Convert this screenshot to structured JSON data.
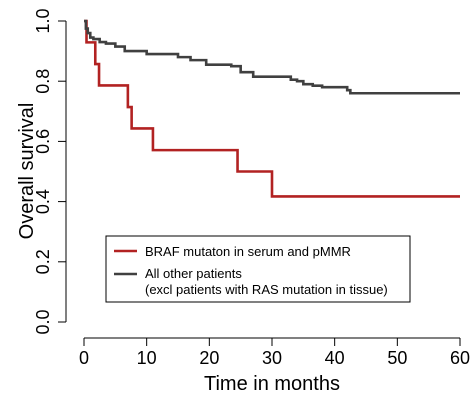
{
  "chart_data": {
    "type": "line",
    "subtype": "kaplan-meier step",
    "title": "",
    "xlabel": "Time in months",
    "ylabel": "Overall survival",
    "xlim": [
      0,
      60
    ],
    "ylim": [
      0,
      1
    ],
    "xticks": [
      "0",
      "10",
      "20",
      "30",
      "40",
      "50",
      "60"
    ],
    "yticks": [
      "0.0",
      "0.2",
      "0.4",
      "0.6",
      "0.8",
      "1.0"
    ],
    "grid": false,
    "legend_position": "bottom-right",
    "series": [
      {
        "name": "BRAF mutaton in serum and pMMR",
        "color": "#b22222",
        "x": [
          0,
          0.4,
          1.8,
          2.4,
          7.0,
          7.6,
          11.0,
          24.5,
          30.0,
          60
        ],
        "y": [
          1.0,
          0.929,
          0.857,
          0.786,
          0.714,
          0.643,
          0.571,
          0.5,
          0.417,
          0.417
        ]
      },
      {
        "name": "All other patients\n(excl patients with RAS mutation in tissue)",
        "color": "#404040",
        "x": [
          0,
          0.3,
          0.6,
          1.0,
          1.5,
          2.5,
          3.5,
          5.0,
          6.5,
          10.0,
          15.0,
          17.0,
          19.5,
          23.5,
          25.0,
          27.0,
          33.0,
          34.0,
          35.0,
          36.5,
          38.0,
          42.0,
          42.5,
          60
        ],
        "y": [
          1.0,
          0.975,
          0.96,
          0.945,
          0.94,
          0.93,
          0.925,
          0.915,
          0.9,
          0.89,
          0.88,
          0.87,
          0.855,
          0.85,
          0.83,
          0.815,
          0.805,
          0.8,
          0.79,
          0.785,
          0.78,
          0.77,
          0.76,
          0.76
        ]
      }
    ]
  }
}
